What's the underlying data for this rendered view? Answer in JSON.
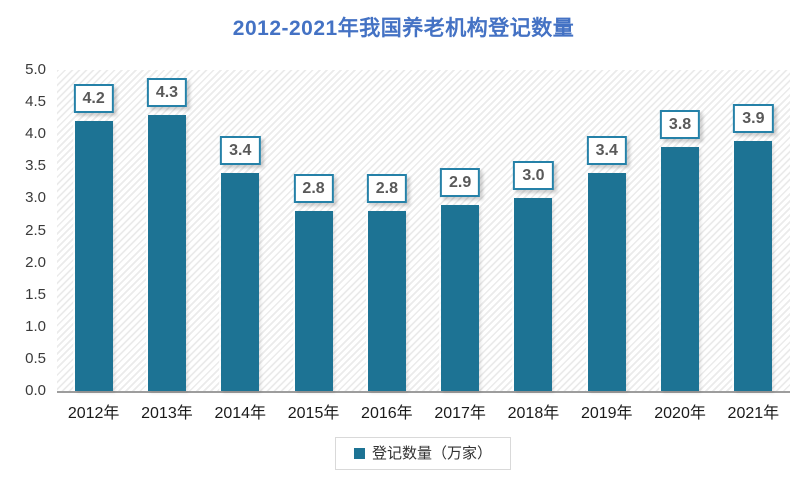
{
  "title": "2012-2021年我国养老机构登记数量",
  "legend": {
    "label": "登记数量（万家）",
    "marker": "square"
  },
  "colors": {
    "pageBg": "#ffffff",
    "barColor": "#1d7394",
    "titleColor": "#4472c4",
    "labelBorderColor": "#2581a8",
    "labelTextColor": "#595959",
    "axisTextColor": "#3a3a3a",
    "xtickTextColor": "#1a1a1a",
    "axisLineColor": "#9d9d9d",
    "legendBorderColor": "#d9d9d9",
    "legendTextColor": "#333333",
    "hatchColor": "#ebebeb"
  },
  "chart_data": {
    "type": "bar",
    "title": "2012-2021年我国养老机构登记数量",
    "categories": [
      "2012年",
      "2013年",
      "2014年",
      "2015年",
      "2016年",
      "2017年",
      "2018年",
      "2019年",
      "2020年",
      "2021年"
    ],
    "series": [
      {
        "name": "登记数量（万家）",
        "values": [
          4.2,
          4.3,
          3.4,
          2.8,
          2.8,
          2.9,
          3.0,
          3.4,
          3.8,
          3.9
        ]
      }
    ],
    "value_labels": [
      "4.2",
      "4.3",
      "3.4",
      "2.8",
      "2.8",
      "2.9",
      "3.0",
      "3.4",
      "3.8",
      "3.9"
    ],
    "xlabel": "",
    "ylabel": "",
    "ylim": [
      0,
      5
    ],
    "ytick_step": 0.5,
    "yticks": [
      "5.0",
      "4.5",
      "4.0",
      "3.5",
      "3.0",
      "2.5",
      "2.0",
      "1.5",
      "1.0",
      "0.5",
      "0.0"
    ],
    "grid": false,
    "legend_position": "bottom-center",
    "plot_background": "diagonal-hatch",
    "data_label_style": "boxed-above-bar"
  }
}
